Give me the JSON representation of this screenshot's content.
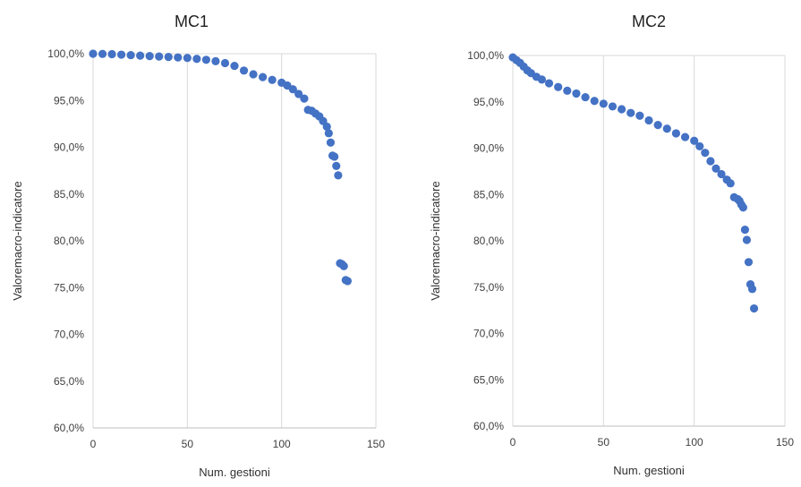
{
  "chart_data": [
    {
      "type": "scatter",
      "title": "MC1",
      "xlabel": "Num. gestioni",
      "ylabel": "Valoremacro-indicatore",
      "xlim": [
        0,
        150
      ],
      "ylim": [
        60,
        100
      ],
      "xticks": [
        "0",
        "50",
        "100",
        "150"
      ],
      "yticks": [
        "60,0%",
        "65,0%",
        "70,0%",
        "75,0%",
        "80,0%",
        "85,0%",
        "90,0%",
        "95,0%",
        "100,0%"
      ],
      "grid": "vertical",
      "color": "#4472C4",
      "series": [
        {
          "x": [
            0,
            5,
            10,
            15,
            20,
            25,
            30,
            35,
            40,
            45,
            50,
            55,
            60,
            65,
            70,
            75,
            80,
            85,
            90,
            95,
            100,
            103,
            106,
            109,
            112,
            114,
            116,
            118,
            120,
            122,
            124,
            125,
            126,
            127,
            128,
            129,
            130,
            131,
            132,
            133,
            134,
            135
          ],
          "y": [
            100.0,
            99.98,
            99.95,
            99.9,
            99.85,
            99.8,
            99.75,
            99.7,
            99.65,
            99.6,
            99.55,
            99.45,
            99.35,
            99.2,
            99.0,
            98.7,
            98.2,
            97.8,
            97.5,
            97.2,
            96.9,
            96.6,
            96.2,
            95.7,
            95.2,
            94.0,
            93.9,
            93.6,
            93.3,
            92.8,
            92.2,
            91.5,
            90.5,
            89.1,
            89.0,
            88.0,
            87.0,
            77.6,
            77.5,
            77.3,
            75.8,
            75.7
          ]
        }
      ]
    },
    {
      "type": "scatter",
      "title": "MC2",
      "xlabel": "Num. gestioni",
      "ylabel": "Valoremacro-indicatore",
      "xlim": [
        0,
        150
      ],
      "ylim": [
        60,
        100
      ],
      "xticks": [
        "0",
        "50",
        "100",
        "150"
      ],
      "yticks": [
        "60,0%",
        "65,0%",
        "70,0%",
        "75,0%",
        "80,0%",
        "85,0%",
        "90,0%",
        "95,0%",
        "100,0%"
      ],
      "grid": "vertical",
      "color": "#4472C4",
      "series": [
        {
          "x": [
            0,
            2,
            4,
            6,
            8,
            10,
            13,
            16,
            20,
            25,
            30,
            35,
            40,
            45,
            50,
            55,
            60,
            65,
            70,
            75,
            80,
            85,
            90,
            95,
            100,
            103,
            106,
            109,
            112,
            115,
            118,
            120,
            122,
            124,
            125,
            126,
            127,
            128,
            129,
            130,
            131,
            132,
            133
          ],
          "y": [
            99.8,
            99.5,
            99.2,
            98.8,
            98.4,
            98.1,
            97.7,
            97.4,
            97.0,
            96.6,
            96.2,
            95.9,
            95.5,
            95.1,
            94.8,
            94.5,
            94.2,
            93.8,
            93.5,
            93.0,
            92.5,
            92.1,
            91.6,
            91.2,
            90.8,
            90.2,
            89.5,
            88.6,
            87.8,
            87.2,
            86.6,
            86.2,
            84.7,
            84.5,
            84.3,
            83.9,
            83.6,
            81.2,
            80.1,
            77.7,
            75.3,
            74.8,
            72.7
          ]
        }
      ]
    }
  ]
}
